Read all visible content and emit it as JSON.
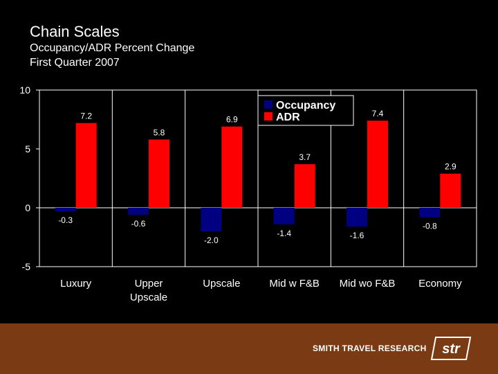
{
  "slide": {
    "title": "Chain Scales",
    "subtitle_line1": "Occupancy/ADR Percent Change",
    "subtitle_line2": "First Quarter 2007"
  },
  "footer": {
    "brand_text": "SMITH TRAVEL RESEARCH",
    "logo_text": "str",
    "background_color": "#7a3a14"
  },
  "chart_data": {
    "type": "bar",
    "categories": [
      [
        "Luxury"
      ],
      [
        "Upper",
        "Upscale"
      ],
      [
        "Upscale"
      ],
      [
        "Mid w F&B"
      ],
      [
        "Mid wo F&B"
      ],
      [
        "Economy"
      ]
    ],
    "series": [
      {
        "name": "Occupancy",
        "color": "#000080",
        "values": [
          -0.3,
          -0.6,
          -2.0,
          -1.4,
          -1.6,
          -0.8
        ],
        "labels": [
          "-0.3",
          "-0.6",
          "-2.0",
          "-1.4",
          "-1.6",
          "-0.8"
        ]
      },
      {
        "name": "ADR",
        "color": "#ff0000",
        "values": [
          7.2,
          5.8,
          6.9,
          3.7,
          7.4,
          2.9
        ],
        "labels": [
          "7.2",
          "5.8",
          "6.9",
          "3.7",
          "7.4",
          "2.9"
        ]
      }
    ],
    "ylim": [
      -5,
      10
    ],
    "yticks": [
      -5,
      0,
      5,
      10
    ],
    "ytick_labels": [
      "-5",
      "0",
      "5",
      "10"
    ],
    "grid": false,
    "legend_position": "top-center"
  }
}
